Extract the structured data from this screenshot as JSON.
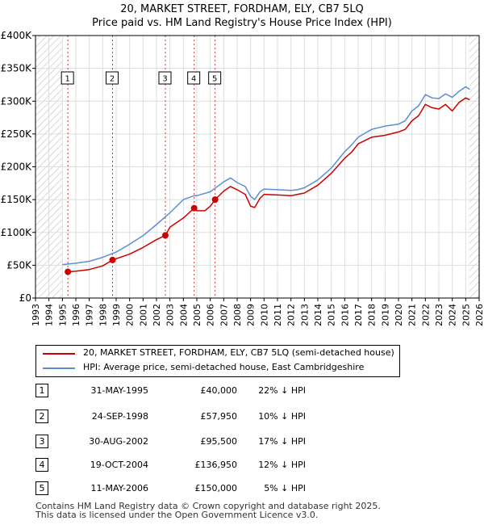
{
  "chart_data": {
    "type": "line",
    "title": "20, MARKET STREET, FORDHAM, ELY, CB7 5LQ",
    "subtitle": "Price paid vs. HM Land Registry's House Price Index (HPI)",
    "xlim": [
      1993,
      2026
    ],
    "ylim": [
      0,
      400000
    ],
    "x_ticks": [
      "1993",
      "1994",
      "1995",
      "1996",
      "1997",
      "1998",
      "1999",
      "2000",
      "2001",
      "2002",
      "2003",
      "2004",
      "2005",
      "2006",
      "2007",
      "2008",
      "2009",
      "2010",
      "2011",
      "2012",
      "2013",
      "2014",
      "2015",
      "2016",
      "2017",
      "2018",
      "2019",
      "2020",
      "2021",
      "2022",
      "2023",
      "2024",
      "2025",
      "2026"
    ],
    "y_ticks": [
      {
        "value": 0,
        "label": "£0"
      },
      {
        "value": 50000,
        "label": "£50K"
      },
      {
        "value": 100000,
        "label": "£100K"
      },
      {
        "value": 150000,
        "label": "£150K"
      },
      {
        "value": 200000,
        "label": "£200K"
      },
      {
        "value": 250000,
        "label": "£250K"
      },
      {
        "value": 300000,
        "label": "£300K"
      },
      {
        "value": 350000,
        "label": "£350K"
      },
      {
        "value": 400000,
        "label": "£400K"
      }
    ],
    "hatched_ranges": [
      [
        1993,
        1995.0
      ],
      [
        2025.25,
        2026
      ]
    ],
    "series": [
      {
        "name": "20, MARKET STREET, FORDHAM, ELY, CB7 5LQ (semi-detached house)",
        "color": "#cc0000",
        "points": [
          [
            1995.41,
            40000
          ],
          [
            1996,
            41000
          ],
          [
            1997,
            43500
          ],
          [
            1998,
            49000
          ],
          [
            1998.73,
            57950
          ],
          [
            1999,
            60000
          ],
          [
            2000,
            67000
          ],
          [
            2001,
            77000
          ],
          [
            2002,
            89000
          ],
          [
            2002.66,
            95500
          ],
          [
            2003,
            108000
          ],
          [
            2004,
            122000
          ],
          [
            2004.8,
            136950
          ],
          [
            2005,
            133000
          ],
          [
            2005.6,
            133000
          ],
          [
            2006,
            140000
          ],
          [
            2006.36,
            150000
          ],
          [
            2007,
            163000
          ],
          [
            2007.5,
            170000
          ],
          [
            2008,
            165000
          ],
          [
            2008.6,
            158000
          ],
          [
            2009,
            140000
          ],
          [
            2009.3,
            138000
          ],
          [
            2009.7,
            152000
          ],
          [
            2010,
            158000
          ],
          [
            2011,
            157000
          ],
          [
            2012,
            156000
          ],
          [
            2012.5,
            158000
          ],
          [
            2013,
            160000
          ],
          [
            2014,
            172000
          ],
          [
            2015,
            190000
          ],
          [
            2016,
            213000
          ],
          [
            2016.5,
            222000
          ],
          [
            2017,
            235000
          ],
          [
            2018,
            245000
          ],
          [
            2019,
            248000
          ],
          [
            2020,
            253000
          ],
          [
            2020.5,
            257000
          ],
          [
            2021,
            270000
          ],
          [
            2021.5,
            278000
          ],
          [
            2022,
            295000
          ],
          [
            2022.5,
            290000
          ],
          [
            2023,
            288000
          ],
          [
            2023.5,
            295000
          ],
          [
            2024,
            285000
          ],
          [
            2024.5,
            298000
          ],
          [
            2025,
            305000
          ],
          [
            2025.3,
            302000
          ]
        ]
      },
      {
        "name": "HPI: Average price, semi-detached house, East Cambridgeshire",
        "color": "#5b8fd4",
        "points": [
          [
            1995,
            51000
          ],
          [
            1996,
            53000
          ],
          [
            1997,
            56000
          ],
          [
            1998,
            62000
          ],
          [
            1999,
            70000
          ],
          [
            2000,
            82000
          ],
          [
            2001,
            95000
          ],
          [
            2002,
            112000
          ],
          [
            2003,
            130000
          ],
          [
            2004,
            150000
          ],
          [
            2004.8,
            156000
          ],
          [
            2005,
            156000
          ],
          [
            2006,
            162000
          ],
          [
            2007,
            177000
          ],
          [
            2007.5,
            183000
          ],
          [
            2008,
            176000
          ],
          [
            2008.6,
            170000
          ],
          [
            2009,
            155000
          ],
          [
            2009.3,
            150000
          ],
          [
            2009.7,
            162000
          ],
          [
            2010,
            166000
          ],
          [
            2011,
            165000
          ],
          [
            2012,
            164000
          ],
          [
            2012.5,
            165000
          ],
          [
            2013,
            168000
          ],
          [
            2014,
            180000
          ],
          [
            2015,
            198000
          ],
          [
            2016,
            223000
          ],
          [
            2016.5,
            233000
          ],
          [
            2017,
            245000
          ],
          [
            2018,
            257000
          ],
          [
            2019,
            262000
          ],
          [
            2020,
            265000
          ],
          [
            2020.5,
            270000
          ],
          [
            2021,
            285000
          ],
          [
            2021.5,
            293000
          ],
          [
            2022,
            310000
          ],
          [
            2022.5,
            305000
          ],
          [
            2023,
            304000
          ],
          [
            2023.5,
            311000
          ],
          [
            2024,
            306000
          ],
          [
            2024.5,
            315000
          ],
          [
            2025,
            322000
          ],
          [
            2025.3,
            318000
          ]
        ]
      }
    ],
    "sales": [
      {
        "num": "1",
        "date": "31-MAY-1995",
        "year": 1995.41,
        "price": 40000,
        "price_label": "£40,000",
        "hpi": "22% ↓ HPI"
      },
      {
        "num": "2",
        "date": "24-SEP-1998",
        "year": 1998.73,
        "price": 57950,
        "price_label": "£57,950",
        "hpi": "10% ↓ HPI"
      },
      {
        "num": "3",
        "date": "30-AUG-2002",
        "year": 2002.66,
        "price": 95500,
        "price_label": "£95,500",
        "hpi": "17% ↓ HPI"
      },
      {
        "num": "4",
        "date": "19-OCT-2004",
        "year": 2004.8,
        "price": 136950,
        "price_label": "£136,950",
        "hpi": "12% ↓ HPI"
      },
      {
        "num": "5",
        "date": "11-MAY-2006",
        "year": 2006.36,
        "price": 150000,
        "price_label": "£150,000",
        "hpi": "5% ↓ HPI"
      }
    ]
  },
  "colors": {
    "property": "#cc0000",
    "hpi": "#5b8fd4",
    "grid": "#dddddd",
    "marker_line": "#cc0000"
  },
  "legend": {
    "property_label": "20, MARKET STREET, FORDHAM, ELY, CB7 5LQ (semi-detached house)",
    "hpi_label": "HPI: Average price, semi-detached house, East Cambridgeshire"
  },
  "footer": {
    "line1": "Contains HM Land Registry data © Crown copyright and database right 2025.",
    "line2": "This data is licensed under the Open Government Licence v3.0."
  }
}
